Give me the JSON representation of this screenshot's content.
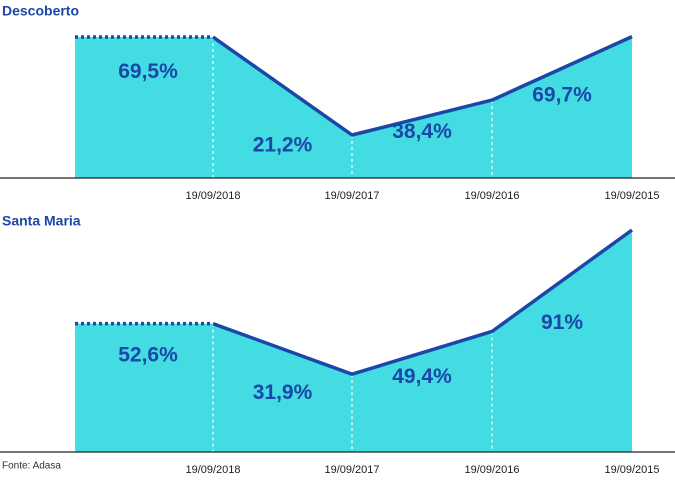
{
  "chart_data": [
    {
      "type": "area",
      "title": "Descoberto",
      "categories": [
        "19/09/2018",
        "19/09/2017",
        "19/09/2016",
        "19/09/2015"
      ],
      "values": [
        69.5,
        21.2,
        38.4,
        69.7
      ],
      "value_labels": [
        "69,5%",
        "21,2%",
        "38,4%",
        "69,7%"
      ],
      "ylim": [
        0,
        70
      ],
      "color": "#43dce3",
      "line_color": "#1a47a8"
    },
    {
      "type": "area",
      "title": "Santa Maria",
      "categories": [
        "19/09/2018",
        "19/09/2017",
        "19/09/2016",
        "19/09/2015"
      ],
      "values": [
        52.6,
        31.9,
        49.4,
        91
      ],
      "value_labels": [
        "52,6%",
        "31,9%",
        "49,4%",
        "91%"
      ],
      "ylim": [
        0,
        91
      ],
      "color": "#43dce3",
      "line_color": "#1a47a8"
    }
  ],
  "source": "Fonte: Adasa"
}
